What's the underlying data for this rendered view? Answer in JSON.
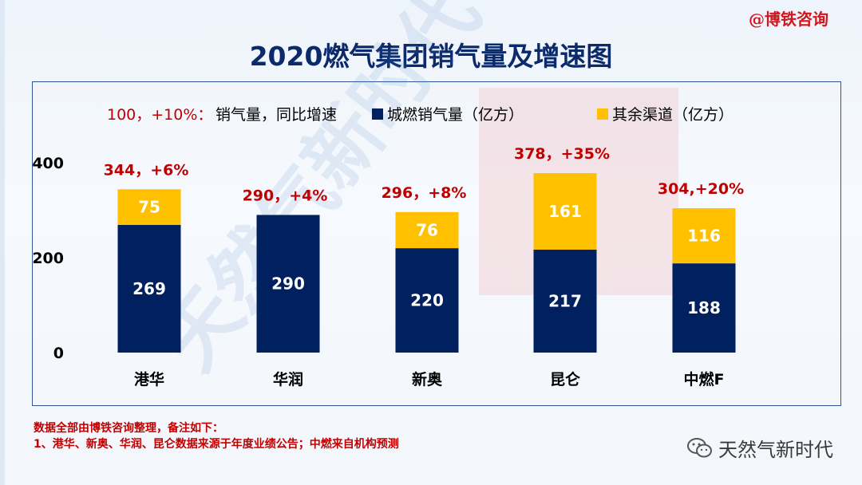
{
  "credit": "@博铁咨询",
  "title": "2020燃气集团销气量及增速图",
  "legend": {
    "note_value": "100，+10%：",
    "note_text": "销气量，同比增速",
    "series1": "城燃销气量（亿方）",
    "series2": "其余渠道（亿方）"
  },
  "notes": {
    "line1": "数据全部由博铁咨询整理，备注如下：",
    "line2": "1、港华、新奥、华润、昆仑数据来源于年度业绩公告；中燃来自机构预测"
  },
  "brand": {
    "name": "天然气新时代",
    "icon": "wechat-icon"
  },
  "watermark": "天然气新时代",
  "colors": {
    "series1": "#002060",
    "series2": "#ffc000",
    "annotation": "#c00000",
    "title": "#0b2a6b",
    "frame": "#2f5597"
  },
  "chart_data": {
    "type": "bar",
    "stacked": true,
    "categories": [
      "港华",
      "华润",
      "新奥",
      "昆仑",
      "中燃F"
    ],
    "series": [
      {
        "name": "城燃销气量（亿方）",
        "values": [
          269,
          290,
          220,
          217,
          188
        ]
      },
      {
        "name": "其余渠道（亿方）",
        "values": [
          75,
          null,
          76,
          161,
          116
        ]
      }
    ],
    "total_labels": [
      "344，+6%",
      "290，+4%",
      "296，+8%",
      "378，+35%",
      "304,+20%"
    ],
    "totals": [
      344,
      290,
      296,
      378,
      304
    ],
    "growth_pct": [
      6,
      4,
      8,
      35,
      20
    ],
    "yticks": [
      0,
      200,
      400
    ],
    "ylim": [
      0,
      400
    ],
    "grid": false,
    "legend_position": "top"
  }
}
